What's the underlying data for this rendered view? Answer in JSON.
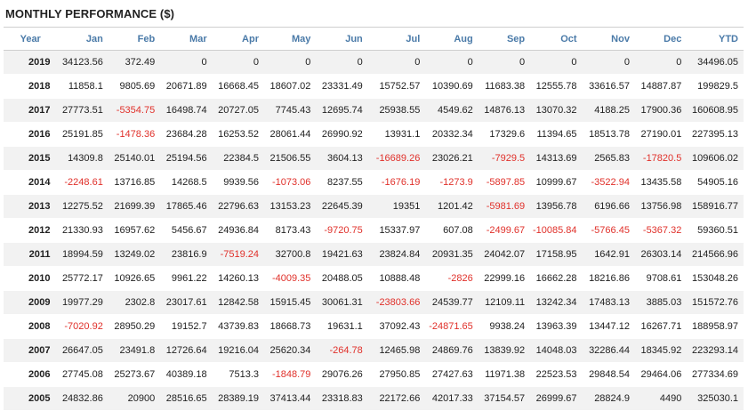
{
  "title": "MONTHLY PERFORMANCE ($)",
  "colors": {
    "header_text": "#4a7aa8",
    "negative": "#e0302a",
    "stripe": "#f2f2f2"
  },
  "table": {
    "headers": [
      "Year",
      "Jan",
      "Feb",
      "Mar",
      "Apr",
      "May",
      "Jun",
      "Jul",
      "Aug",
      "Sep",
      "Oct",
      "Nov",
      "Dec",
      "YTD"
    ],
    "rows": [
      [
        "2019",
        "34123.56",
        "372.49",
        "0",
        "0",
        "0",
        "0",
        "0",
        "0",
        "0",
        "0",
        "0",
        "0",
        "34496.05"
      ],
      [
        "2018",
        "11858.1",
        "9805.69",
        "20671.89",
        "16668.45",
        "18607.02",
        "23331.49",
        "15752.57",
        "10390.69",
        "11683.38",
        "12555.78",
        "33616.57",
        "14887.87",
        "199829.5"
      ],
      [
        "2017",
        "27773.51",
        "-5354.75",
        "16498.74",
        "20727.05",
        "7745.43",
        "12695.74",
        "25938.55",
        "4549.62",
        "14876.13",
        "13070.32",
        "4188.25",
        "17900.36",
        "160608.95"
      ],
      [
        "2016",
        "25191.85",
        "-1478.36",
        "23684.28",
        "16253.52",
        "28061.44",
        "26990.92",
        "13931.1",
        "20332.34",
        "17329.6",
        "11394.65",
        "18513.78",
        "27190.01",
        "227395.13"
      ],
      [
        "2015",
        "14309.8",
        "25140.01",
        "25194.56",
        "22384.5",
        "21506.55",
        "3604.13",
        "-16689.26",
        "23026.21",
        "-7929.5",
        "14313.69",
        "2565.83",
        "-17820.5",
        "109606.02"
      ],
      [
        "2014",
        "-2248.61",
        "13716.85",
        "14268.5",
        "9939.56",
        "-1073.06",
        "8237.55",
        "-1676.19",
        "-1273.9",
        "-5897.85",
        "10999.67",
        "-3522.94",
        "13435.58",
        "54905.16"
      ],
      [
        "2013",
        "12275.52",
        "21699.39",
        "17865.46",
        "22796.63",
        "13153.23",
        "22645.39",
        "19351",
        "1201.42",
        "-5981.69",
        "13956.78",
        "6196.66",
        "13756.98",
        "158916.77"
      ],
      [
        "2012",
        "21330.93",
        "16957.62",
        "5456.67",
        "24936.84",
        "8173.43",
        "-9720.75",
        "15337.97",
        "607.08",
        "-2499.67",
        "-10085.84",
        "-5766.45",
        "-5367.32",
        "59360.51"
      ],
      [
        "2011",
        "18994.59",
        "13249.02",
        "23816.9",
        "-7519.24",
        "32700.8",
        "19421.63",
        "23824.84",
        "20931.35",
        "24042.07",
        "17158.95",
        "1642.91",
        "26303.14",
        "214566.96"
      ],
      [
        "2010",
        "25772.17",
        "10926.65",
        "9961.22",
        "14260.13",
        "-4009.35",
        "20488.05",
        "10888.48",
        "-2826",
        "22999.16",
        "16662.28",
        "18216.86",
        "9708.61",
        "153048.26"
      ],
      [
        "2009",
        "19977.29",
        "2302.8",
        "23017.61",
        "12842.58",
        "15915.45",
        "30061.31",
        "-23803.66",
        "24539.77",
        "12109.11",
        "13242.34",
        "17483.13",
        "3885.03",
        "151572.76"
      ],
      [
        "2008",
        "-7020.92",
        "28950.29",
        "19152.7",
        "43739.83",
        "18668.73",
        "19631.1",
        "37092.43",
        "-24871.65",
        "9938.24",
        "13963.39",
        "13447.12",
        "16267.71",
        "188958.97"
      ],
      [
        "2007",
        "26647.05",
        "23491.8",
        "12726.64",
        "19216.04",
        "25620.34",
        "-264.78",
        "12465.98",
        "24869.76",
        "13839.92",
        "14048.03",
        "32286.44",
        "18345.92",
        "223293.14"
      ],
      [
        "2006",
        "27745.08",
        "25273.67",
        "40389.18",
        "7513.3",
        "-1848.79",
        "29076.26",
        "27950.85",
        "27427.63",
        "11971.38",
        "22523.53",
        "29848.54",
        "29464.06",
        "277334.69"
      ],
      [
        "2005",
        "24832.86",
        "20900",
        "28516.65",
        "28389.19",
        "37413.44",
        "23318.83",
        "22172.66",
        "42017.33",
        "37154.57",
        "26999.67",
        "28824.9",
        "4490",
        "325030.1"
      ]
    ]
  }
}
